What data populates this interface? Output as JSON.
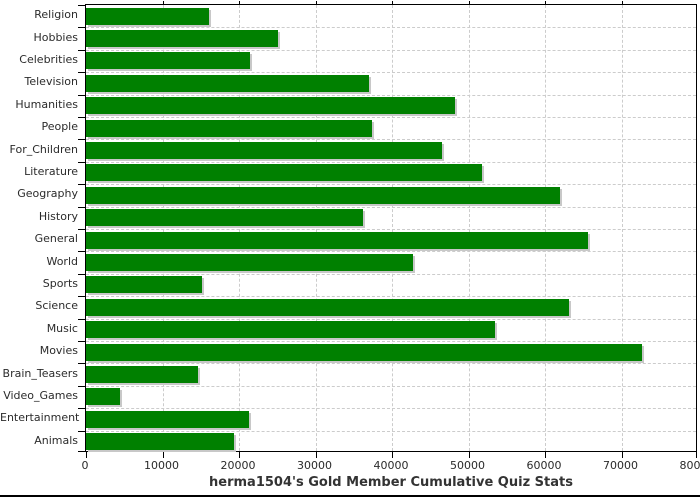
{
  "chart_data": {
    "type": "bar",
    "orientation": "horizontal",
    "title": "herma1504's Gold Member Cumulative Quiz Stats",
    "categories": [
      "Religion",
      "Hobbies",
      "Celebrities",
      "Television",
      "Humanities",
      "People",
      "For_Children",
      "Literature",
      "Geography",
      "History",
      "General",
      "World",
      "Sports",
      "Science",
      "Music",
      "Movies",
      "Brain_Teasers",
      "Video_Games",
      "Entertainment",
      "Animals"
    ],
    "values": [
      16100,
      25100,
      21400,
      37000,
      48200,
      37400,
      46600,
      51700,
      61900,
      36200,
      65600,
      42700,
      15200,
      63100,
      53400,
      72700,
      14600,
      4500,
      21300,
      19400
    ],
    "xlabel": "",
    "ylabel": "",
    "xlim": [
      0,
      80000
    ],
    "x_ticks": [
      0,
      10000,
      20000,
      30000,
      40000,
      50000,
      60000,
      70000,
      80000
    ],
    "x_tick_labels": [
      "0",
      "10000",
      "20000",
      "30000",
      "40000",
      "50000",
      "60000",
      "70000",
      "80000"
    ],
    "grid": "dashed, vertical at every 10000 and horizontal at every row boundary",
    "legend": "none",
    "colors": {
      "bar": "#008000",
      "bar_shadow": "#c8c8c8",
      "grid": "#cccccc",
      "axis": "#000000",
      "text": "#2b2b2b",
      "title_text": "#333333",
      "background": "#ffffff"
    }
  }
}
